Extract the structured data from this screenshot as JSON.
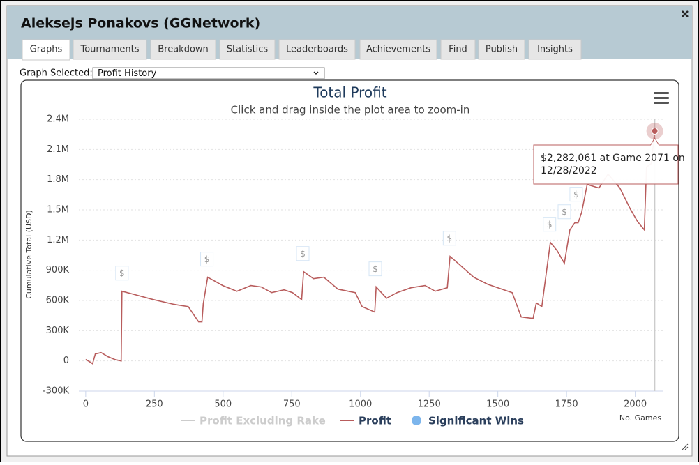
{
  "window": {
    "title": "Aleksejs Ponakovs (GGNetwork)",
    "tabs": [
      "Graphs",
      "Tournaments",
      "Breakdown",
      "Statistics",
      "Leaderboards",
      "Achievements",
      "Find",
      "Publish",
      "Insights"
    ],
    "active_tab": 0
  },
  "graph_selector": {
    "label": "Graph Selected:",
    "value": "Profit History"
  },
  "chart_data": {
    "type": "line",
    "title": "Total Profit",
    "subtitle": "Click and drag inside the plot area to zoom-in",
    "y_label": "Cumulative Total (USD)",
    "x_label": "No. Games",
    "xlim": [
      -25,
      2100
    ],
    "ylim": [
      -300000,
      2400000
    ],
    "xticks": [
      0,
      250,
      500,
      750,
      1000,
      1250,
      1500,
      1750,
      2000
    ],
    "yticks": [
      {
        "value": -300000,
        "label": "-300K"
      },
      0,
      {
        "value": 300000,
        "label": "300K"
      },
      {
        "value": 600000,
        "label": "600K"
      },
      {
        "value": 900000,
        "label": "900K"
      },
      {
        "value": 1200000,
        "label": "1.2M"
      },
      {
        "value": 1500000,
        "label": "1.5M"
      },
      {
        "value": 1800000,
        "label": "1.8M"
      },
      {
        "value": 2100000,
        "label": "2.1M"
      },
      {
        "value": 2400000,
        "label": "2.4M"
      }
    ],
    "grid": true,
    "series": [
      {
        "name": "Profit Excluding Rake",
        "color": "#cccccc",
        "hidden": true
      },
      {
        "name": "Profit",
        "color": "#b85c5c",
        "x": [
          0,
          18,
          25,
          35,
          56,
          81,
          106,
          129,
          132,
          170,
          246,
          322,
          373,
          411,
          423,
          428,
          444,
          499,
          550,
          601,
          639,
          677,
          722,
          753,
          786,
          793,
          829,
          867,
          918,
          981,
          1006,
          1052,
          1057,
          1095,
          1133,
          1184,
          1235,
          1272,
          1316,
          1326,
          1361,
          1412,
          1463,
          1552,
          1585,
          1628,
          1640,
          1660,
          1691,
          1716,
          1742,
          1762,
          1780,
          1792,
          1805,
          1825,
          1868,
          1901,
          1944,
          1982,
          2008,
          2033,
          2041,
          2058,
          2071
        ],
        "values": [
          14000,
          -14000,
          -28000,
          69000,
          83000,
          42000,
          14000,
          0,
          692000,
          665000,
          609000,
          561000,
          540000,
          388000,
          388000,
          568000,
          831000,
          748000,
          692000,
          748000,
          734000,
          678000,
          706000,
          678000,
          609000,
          886000,
          817000,
          831000,
          713000,
          678000,
          540000,
          485000,
          734000,
          623000,
          678000,
          727000,
          748000,
          692000,
          727000,
          1038000,
          955000,
          831000,
          761000,
          678000,
          436000,
          422000,
          575000,
          540000,
          1177000,
          1094000,
          969000,
          1301000,
          1371000,
          1371000,
          1475000,
          1752000,
          1717000,
          1855000,
          1717000,
          1509000,
          1385000,
          1301000,
          1925000,
          1959000,
          2282061
        ]
      },
      {
        "name": "Significant Wins",
        "color": "#7cb5ec",
        "marker": "$",
        "x": [
          132,
          441,
          790,
          1054,
          1324,
          1688,
          1742,
          1785
        ],
        "values": [
          692000,
          831000,
          886000,
          734000,
          1038000,
          1177000,
          1301000,
          1475000
        ]
      }
    ],
    "tooltip": [
      "$2,282,061 at Game 2071 on",
      "12/28/2022"
    ]
  }
}
